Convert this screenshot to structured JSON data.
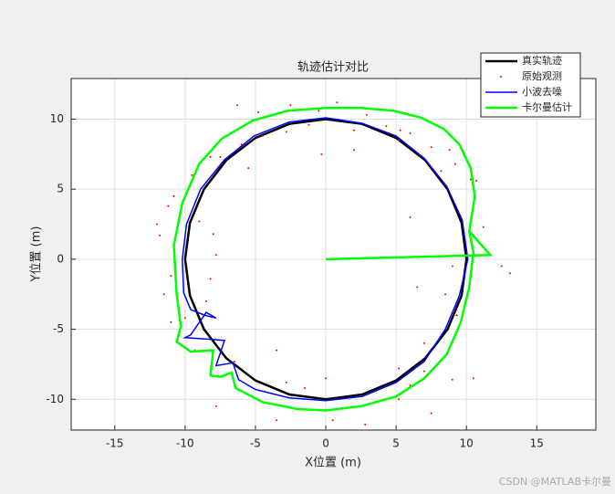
{
  "chart_data": {
    "type": "line",
    "title": "轨迹估计对比",
    "x_label": "X位置 (m)",
    "y_label": "Y位置 (m)",
    "xlim": [
      -18.1,
      19.2
    ],
    "ylim": [
      -12.2,
      12.9
    ],
    "xticks": [
      -15,
      -10,
      -5,
      0,
      5,
      10,
      15
    ],
    "yticks": [
      -10,
      -5,
      0,
      5,
      10
    ],
    "grid": true,
    "legend": "northeast",
    "watermark": "CSDN @MATLAB卡尔曼",
    "series": [
      {
        "name": "真实轨迹",
        "color": "#000000",
        "mode": "line",
        "x": [
          10,
          9.66,
          8.66,
          7.07,
          5,
          2.59,
          0,
          -2.59,
          -5,
          -7.07,
          -8.66,
          -9.66,
          -10,
          -9.66,
          -8.66,
          -7.07,
          -5,
          -2.59,
          0,
          2.59,
          5,
          7.07,
          8.66,
          9.66,
          10
        ],
        "values": [
          0,
          2.59,
          5,
          7.07,
          8.66,
          9.66,
          10,
          9.66,
          8.66,
          7.07,
          5,
          2.59,
          0,
          -2.59,
          -5,
          -7.07,
          -8.66,
          -9.66,
          -10,
          -9.66,
          -8.66,
          -7.07,
          -5,
          -2.59,
          0
        ]
      },
      {
        "name": "原始观测",
        "color": "#ff0000",
        "mode": "markers",
        "x": [
          12.5,
          13.1,
          11.2,
          10.5,
          10.3,
          10.7,
          9.2,
          8.8,
          8.2,
          7.5,
          6.0,
          5.3,
          4.3,
          2.9,
          2.0,
          0.8,
          -0.5,
          -1.2,
          -2.8,
          -2.5,
          -4.5,
          -4.8,
          -6.0,
          -6.3,
          -7.5,
          -8.2,
          -9.5,
          -10.8,
          -11.2,
          -12,
          -11.8,
          -9.0,
          -8.0,
          -7.8,
          -11.0,
          -11.5,
          -11.0,
          -8.2,
          -8.5,
          -10.0,
          -9.3,
          -7.8,
          -6.5,
          -3.5,
          -3.5,
          -2.8,
          -1.5,
          0,
          0.5,
          2.8,
          5.2,
          5.2,
          6.0,
          7.0,
          7.0,
          7.5,
          8.2,
          9.0,
          9.3,
          10.5,
          6.5,
          8.5,
          9.0,
          -0.3,
          2.0,
          6.0,
          5.2,
          -5.5
        ],
        "values": [
          -0.5,
          -1.0,
          2.3,
          4,
          5.7,
          5.6,
          6.8,
          7.8,
          6.3,
          8.0,
          9.0,
          9.2,
          9.5,
          10.3,
          9.2,
          11.2,
          10.6,
          9.6,
          9.1,
          11.0,
          8.8,
          10.5,
          8.2,
          11.0,
          7.3,
          7.3,
          6.0,
          4.5,
          3.8,
          2.5,
          1.7,
          2.7,
          1.8,
          0.3,
          -1.2,
          -2.5,
          -4.5,
          -1.4,
          -3.0,
          -4.2,
          -6.5,
          -10.5,
          -7.3,
          -6.5,
          -11.5,
          -8.8,
          -9.2,
          -8.5,
          -11.5,
          -11.8,
          -10.0,
          -7.8,
          -9.0,
          -6.0,
          -8.0,
          -11.0,
          -7.2,
          -8.6,
          -4.0,
          -8.5,
          -2.0,
          -2.5,
          -0.5,
          7.5,
          7.8,
          3.0,
          8.5,
          6.5
        ]
      },
      {
        "name": "小波去噪",
        "color": "#0000ff",
        "mode": "line",
        "x": [
          10.1,
          9.7,
          8.6,
          7.0,
          5.0,
          2.6,
          0,
          -2.6,
          -5.1,
          -7.2,
          -8.9,
          -9.9,
          -10.2,
          -10.1,
          -9.6,
          -8.6,
          -7.8,
          -8.5,
          -9.6,
          -10.0,
          -8.5,
          -7.2,
          -7.8,
          -6.6,
          -6.2,
          -5.0,
          -2.6,
          0,
          2.6,
          5.0,
          7.0,
          8.5,
          9.5,
          10.1
        ],
        "values": [
          0,
          2.8,
          5.2,
          7.2,
          8.8,
          9.7,
          10.1,
          9.8,
          8.8,
          7.1,
          5.0,
          2.5,
          0,
          -2.4,
          -3.6,
          -4.0,
          -4.2,
          -3.8,
          -5.4,
          -5.6,
          -5.7,
          -5.8,
          -7.6,
          -7.4,
          -8.6,
          -9.3,
          -9.9,
          -10.1,
          -9.8,
          -8.8,
          -7.3,
          -5.0,
          -2.6,
          0
        ]
      },
      {
        "name": "卡尔曼估计",
        "color": "#00ff00",
        "mode": "line",
        "x": [
          0,
          11.7,
          10.2,
          10.6,
          10.3,
          9.5,
          8.4,
          6.8,
          4.8,
          2.5,
          0,
          -2.7,
          -5.2,
          -7.4,
          -9.0,
          -10.2,
          -10.8,
          -10.6,
          -10.3,
          -10.6,
          -9.6,
          -8.0,
          -8.2,
          -7.5,
          -6.7,
          -6.4,
          -4.5,
          -2.0,
          0,
          2.5,
          5,
          7,
          8.6,
          9.6,
          10.2,
          10.5,
          10.2
        ],
        "values": [
          0,
          0.3,
          2.0,
          4.5,
          6.5,
          8.2,
          9.3,
          10.1,
          10.6,
          10.8,
          10.8,
          10.6,
          9.9,
          8.6,
          6.8,
          4.0,
          1.0,
          -2.5,
          -4.8,
          -5.9,
          -6.6,
          -6.5,
          -8.3,
          -8.4,
          -8.1,
          -9.2,
          -10.2,
          -10.7,
          -10.8,
          -10.5,
          -9.8,
          -8.5,
          -6.8,
          -4.5,
          -2.0,
          0.5,
          2.0
        ]
      }
    ]
  }
}
